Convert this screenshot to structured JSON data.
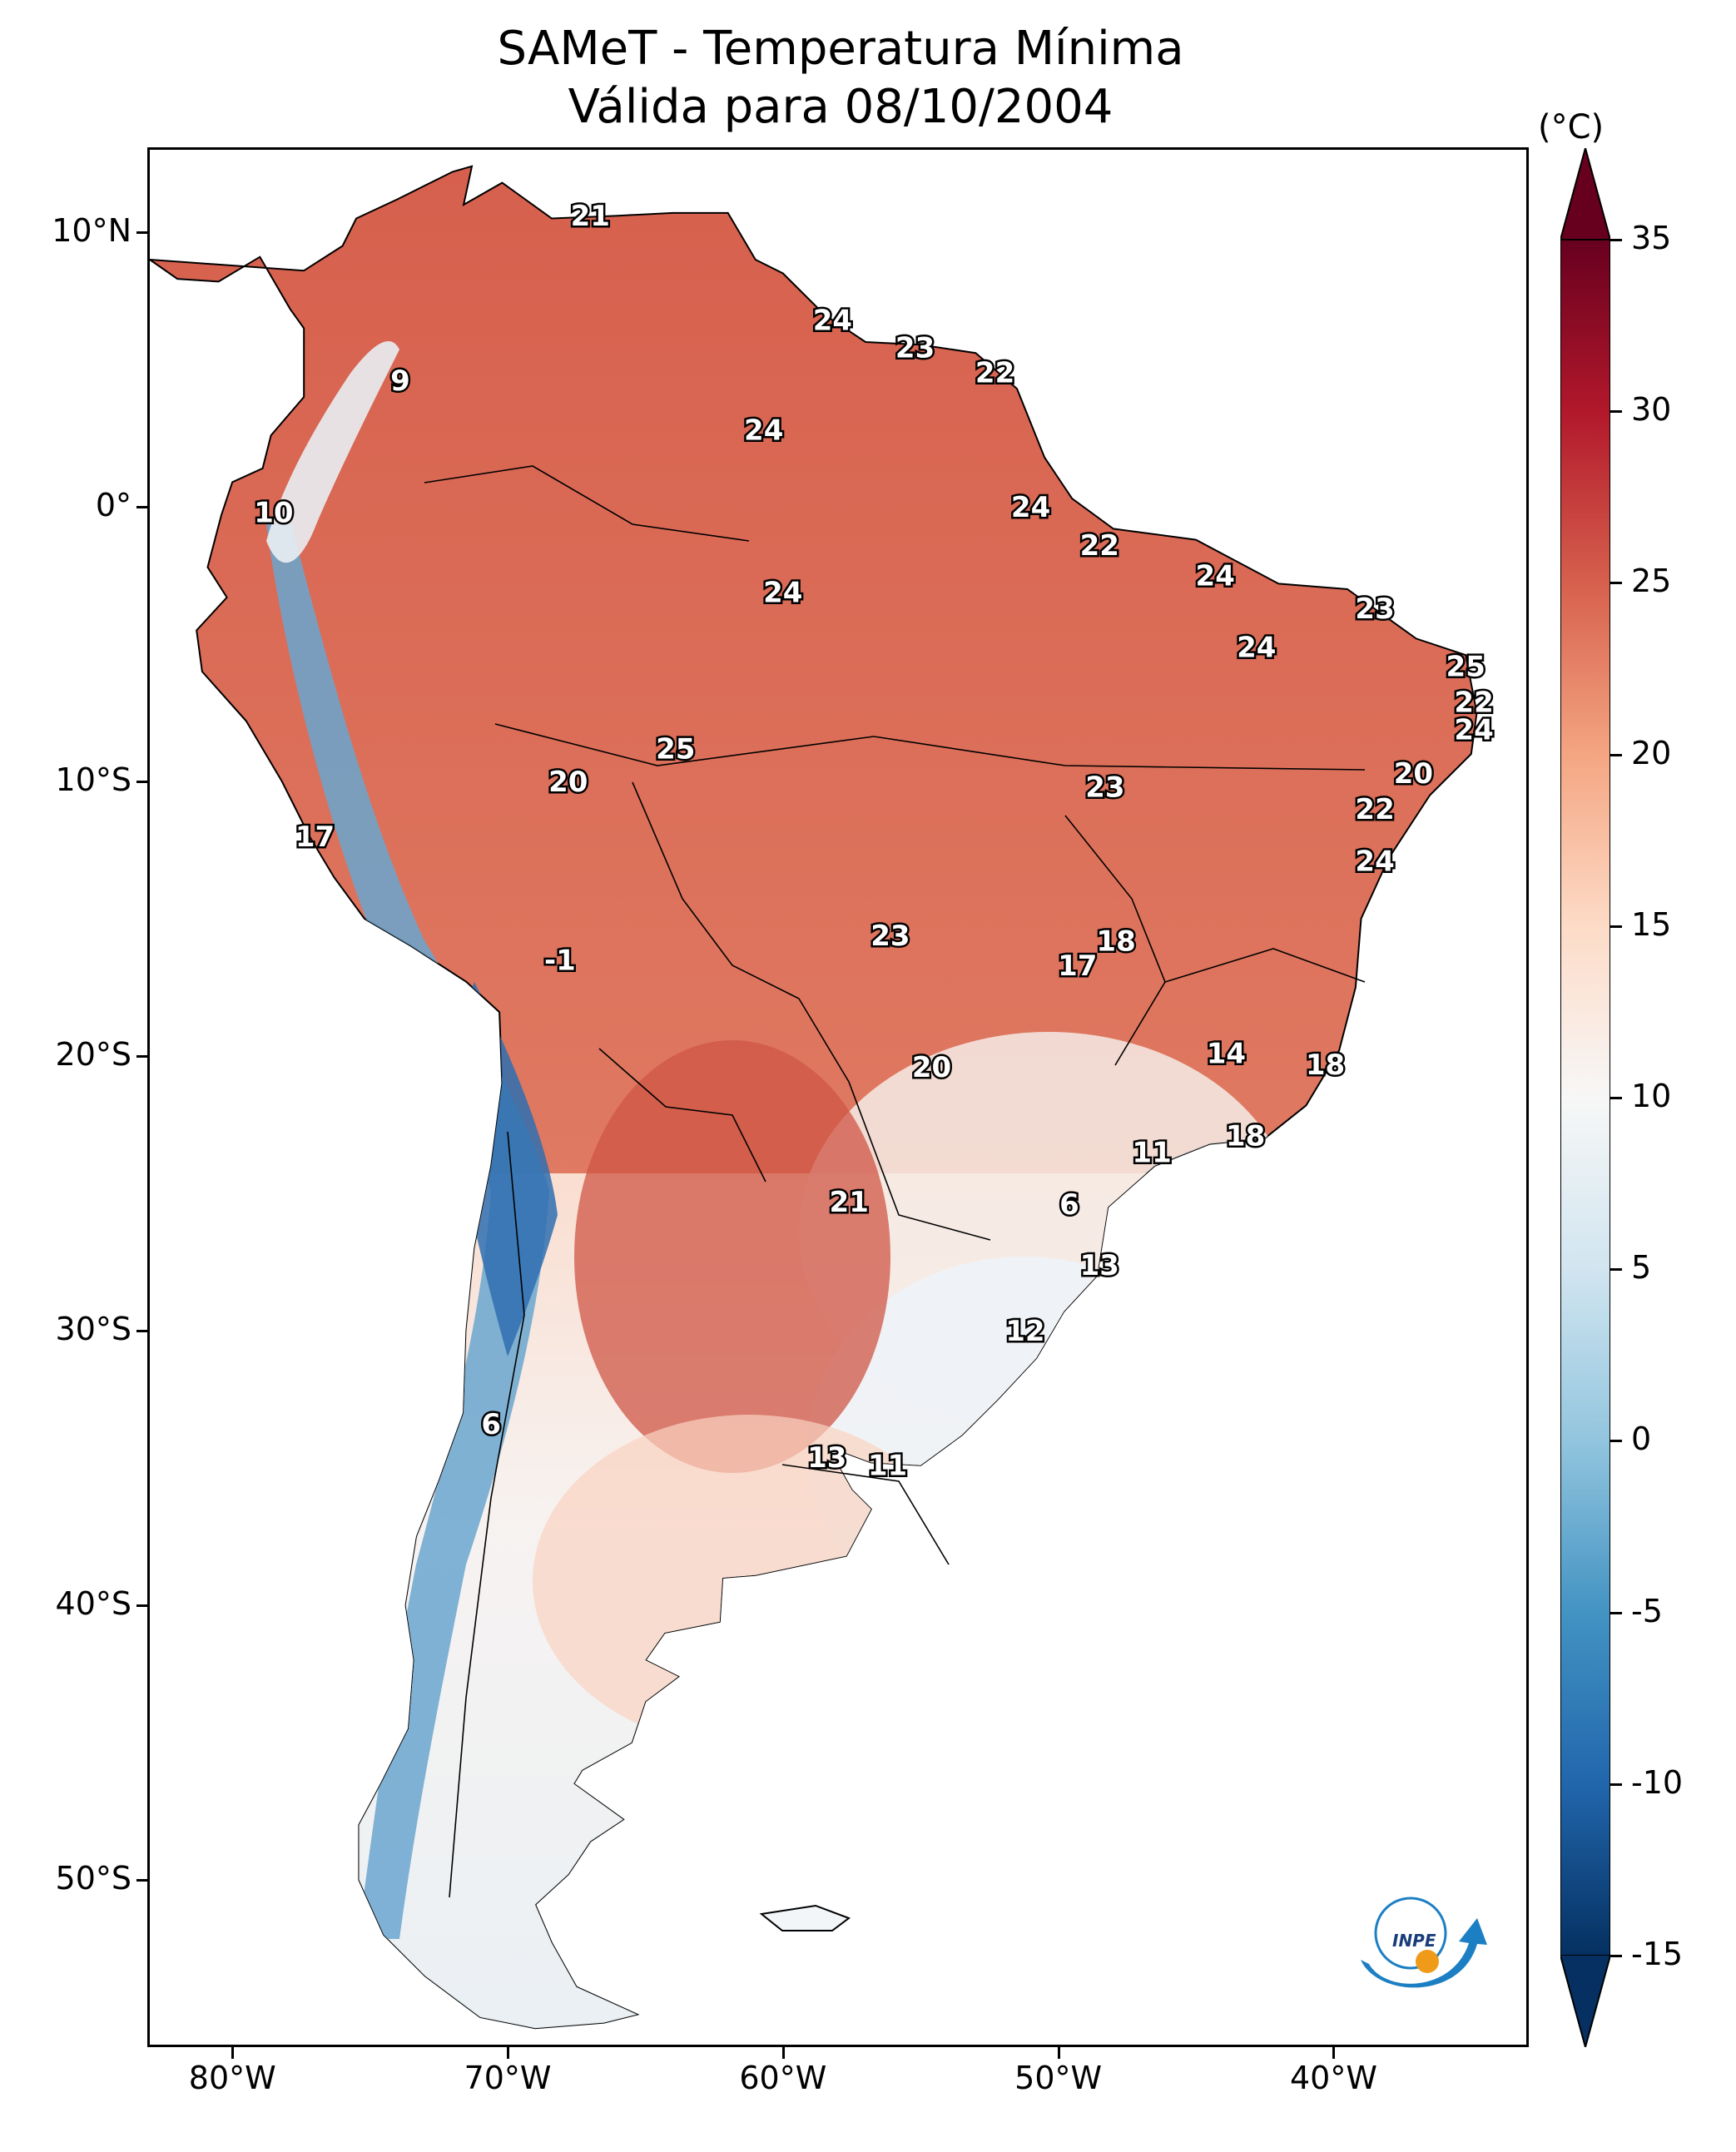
{
  "title": {
    "line1": "SAMeT - Temperatura Mínima",
    "line2": "Válida para 08/10/2004"
  },
  "axes": {
    "lat_labels": [
      "10°N",
      "0°",
      "10°S",
      "20°S",
      "30°S",
      "40°S",
      "50°S"
    ],
    "lat_values": [
      10,
      0,
      -10,
      -20,
      -30,
      -40,
      -50
    ],
    "lon_labels": [
      "80°W",
      "70°W",
      "60°W",
      "50°W",
      "40°W"
    ],
    "lon_values": [
      -80,
      -70,
      -60,
      -50,
      -40
    ],
    "lon_range": [
      -83,
      -33
    ],
    "lat_range": [
      -56,
      13
    ]
  },
  "colorbar": {
    "unit": "(°C)",
    "tick_labels": [
      "35",
      "30",
      "25",
      "20",
      "15",
      "10",
      "5",
      "0",
      "-5",
      "-10",
      "-15"
    ],
    "tick_values": [
      35,
      30,
      25,
      20,
      15,
      10,
      5,
      0,
      -5,
      -10,
      -15
    ],
    "range": [
      -15,
      35
    ],
    "extend": "both",
    "colormap": "RdBu_r",
    "colors": [
      "#053061",
      "#2166ac",
      "#4393c3",
      "#92c5de",
      "#d1e5f0",
      "#f7f7f7",
      "#fddbc7",
      "#f4a582",
      "#d6604d",
      "#b2182b",
      "#67001f"
    ]
  },
  "stations": [
    {
      "label": "21",
      "lon": -67.0,
      "lat": 10.6
    },
    {
      "label": "9",
      "lon": -73.9,
      "lat": 4.6
    },
    {
      "label": "24",
      "lon": -58.2,
      "lat": 6.8
    },
    {
      "label": "23",
      "lon": -55.2,
      "lat": 5.8
    },
    {
      "label": "22",
      "lon": -52.3,
      "lat": 4.9
    },
    {
      "label": "24",
      "lon": -60.7,
      "lat": 2.8
    },
    {
      "label": "10",
      "lon": -78.5,
      "lat": -0.2
    },
    {
      "label": "24",
      "lon": -51.0,
      "lat": 0.0
    },
    {
      "label": "22",
      "lon": -48.5,
      "lat": -1.4
    },
    {
      "label": "24",
      "lon": -44.3,
      "lat": -2.5
    },
    {
      "label": "24",
      "lon": -60.0,
      "lat": -3.1
    },
    {
      "label": "23",
      "lon": -38.5,
      "lat": -3.7
    },
    {
      "label": "24",
      "lon": -42.8,
      "lat": -5.1
    },
    {
      "label": "25",
      "lon": -35.2,
      "lat": -5.8
    },
    {
      "label": "22",
      "lon": -34.9,
      "lat": -7.1
    },
    {
      "label": "24",
      "lon": -34.9,
      "lat": -8.1
    },
    {
      "label": "25",
      "lon": -63.9,
      "lat": -8.8
    },
    {
      "label": "20",
      "lon": -67.8,
      "lat": -10.0
    },
    {
      "label": "20",
      "lon": -37.1,
      "lat": -9.7
    },
    {
      "label": "23",
      "lon": -48.3,
      "lat": -10.2
    },
    {
      "label": "22",
      "lon": -38.5,
      "lat": -11.0
    },
    {
      "label": "17",
      "lon": -77.0,
      "lat": -12.0
    },
    {
      "label": "24",
      "lon": -38.5,
      "lat": -12.9
    },
    {
      "label": "23",
      "lon": -56.1,
      "lat": -15.6
    },
    {
      "label": "18",
      "lon": -47.9,
      "lat": -15.8
    },
    {
      "label": "-1",
      "lon": -68.1,
      "lat": -16.5
    },
    {
      "label": "17",
      "lon": -49.3,
      "lat": -16.7
    },
    {
      "label": "14",
      "lon": -43.9,
      "lat": -19.9
    },
    {
      "label": "18",
      "lon": -40.3,
      "lat": -20.3
    },
    {
      "label": "20",
      "lon": -54.6,
      "lat": -20.4
    },
    {
      "label": "18",
      "lon": -43.2,
      "lat": -22.9
    },
    {
      "label": "11",
      "lon": -46.6,
      "lat": -23.5
    },
    {
      "label": "21",
      "lon": -57.6,
      "lat": -25.3
    },
    {
      "label": "6",
      "lon": -49.6,
      "lat": -25.4
    },
    {
      "label": "13",
      "lon": -48.5,
      "lat": -27.6
    },
    {
      "label": "12",
      "lon": -51.2,
      "lat": -30.0
    },
    {
      "label": "6",
      "lon": -70.6,
      "lat": -33.4
    },
    {
      "label": "13",
      "lon": -58.4,
      "lat": -34.6
    },
    {
      "label": "11",
      "lon": -56.2,
      "lat": -34.9
    }
  ],
  "logo": {
    "text": "INPE"
  }
}
